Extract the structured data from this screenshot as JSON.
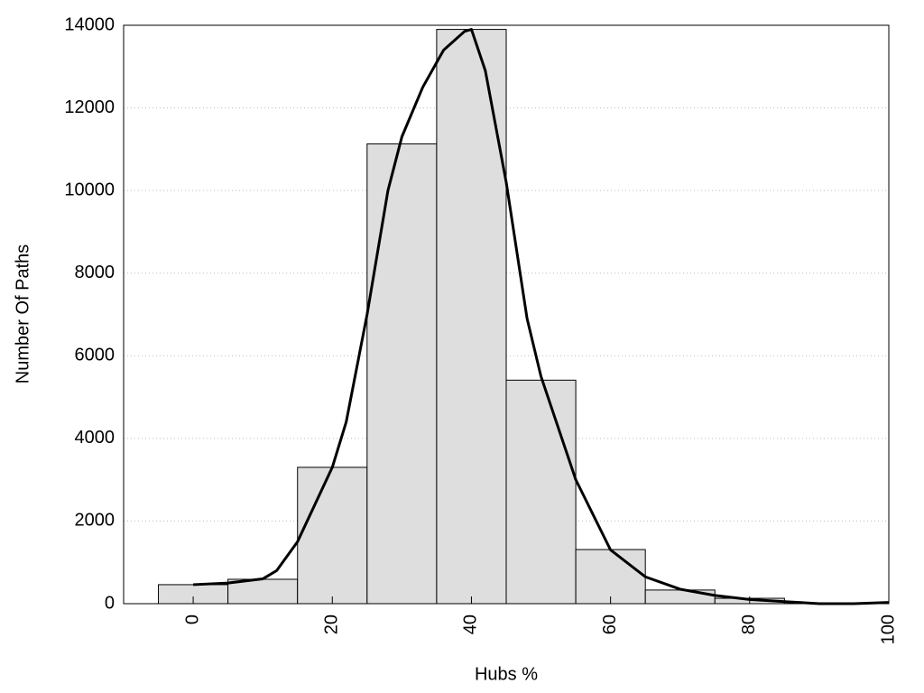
{
  "chart_data": {
    "type": "histogram",
    "xlabel": "Hubs %",
    "ylabel": "Number Of Paths",
    "bins": [
      -5,
      5,
      15,
      25,
      35,
      45,
      55,
      65,
      75,
      85
    ],
    "values": [
      460,
      590,
      3300,
      11130,
      13900,
      5410,
      1310,
      330,
      130
    ],
    "color": "#dedede",
    "line": {
      "color": "#000000",
      "x": [
        0,
        5,
        10,
        12,
        15,
        20,
        22,
        25,
        28,
        30,
        33,
        36,
        39,
        40,
        42,
        45,
        48,
        50,
        55,
        60,
        65,
        70,
        75,
        80,
        85,
        90,
        95,
        100
      ],
      "values": [
        460,
        500,
        600,
        800,
        1500,
        3300,
        4400,
        7000,
        10000,
        11300,
        12500,
        13400,
        13850,
        13900,
        12900,
        10200,
        6900,
        5500,
        3000,
        1300,
        650,
        350,
        200,
        100,
        50,
        0,
        0,
        30
      ]
    },
    "xlim": [
      -10,
      100
    ],
    "xticks": [
      0,
      20,
      40,
      60,
      80,
      100
    ],
    "ylim": [
      0,
      14000
    ],
    "yticks": [
      0,
      2000,
      4000,
      6000,
      8000,
      10000,
      12000,
      14000
    ],
    "grid": true
  }
}
